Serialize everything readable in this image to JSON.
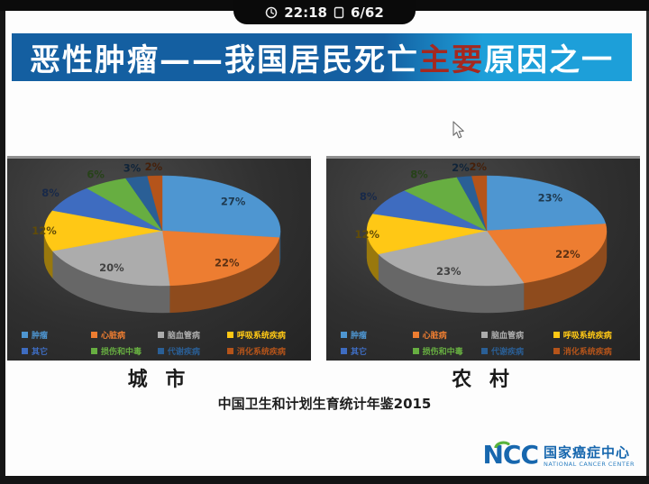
{
  "statusbar": {
    "time": "22:18",
    "page": "6/62"
  },
  "banner": {
    "part1": "恶性肿瘤——我国居民死亡",
    "highlight": "主要",
    "part2": "原因之一",
    "highlight_color": "#A5281F",
    "bg_left": "#145FA1",
    "bg_right": "#1D9FD9"
  },
  "caption": {
    "text": "中国卫生和计划生育统计年鉴2015"
  },
  "logo": {
    "abbr": "NCC",
    "name_cn": "国家癌症中心",
    "name_en": "NATIONAL CANCER CENTER",
    "blue": "#1767AE",
    "green": "#59B33C"
  },
  "chart_data": [
    {
      "type": "pie",
      "style": "3d",
      "title": "城 市",
      "labels": [
        "肿瘤",
        "心脏病",
        "脑血管病",
        "呼吸系统疾病",
        "其它",
        "损伤和中毒",
        "代谢疾病",
        "消化系统疾病"
      ],
      "values": [
        27,
        22,
        20,
        12,
        8,
        6,
        3,
        2
      ],
      "unit": "%",
      "colors": [
        "#4E96D1",
        "#ED7D31",
        "#ACACAC",
        "#FFC815",
        "#3E6CC0",
        "#67AE41",
        "#2A5F96",
        "#B5541A"
      ],
      "legend_position": "bottom",
      "legend_rows": 2
    },
    {
      "type": "pie",
      "style": "3d",
      "title": "农 村",
      "labels": [
        "肿瘤",
        "心脏病",
        "脑血管病",
        "呼吸系统疾病",
        "其它",
        "损伤和中毒",
        "代谢疾病",
        "消化系统疾病"
      ],
      "values": [
        23,
        22,
        23,
        12,
        8,
        8,
        2,
        2
      ],
      "unit": "%",
      "colors": [
        "#4E96D1",
        "#ED7D31",
        "#ACACAC",
        "#FFC815",
        "#3E6CC0",
        "#67AE41",
        "#2A5F96",
        "#B5541A"
      ],
      "legend_position": "bottom",
      "legend_rows": 2
    }
  ]
}
